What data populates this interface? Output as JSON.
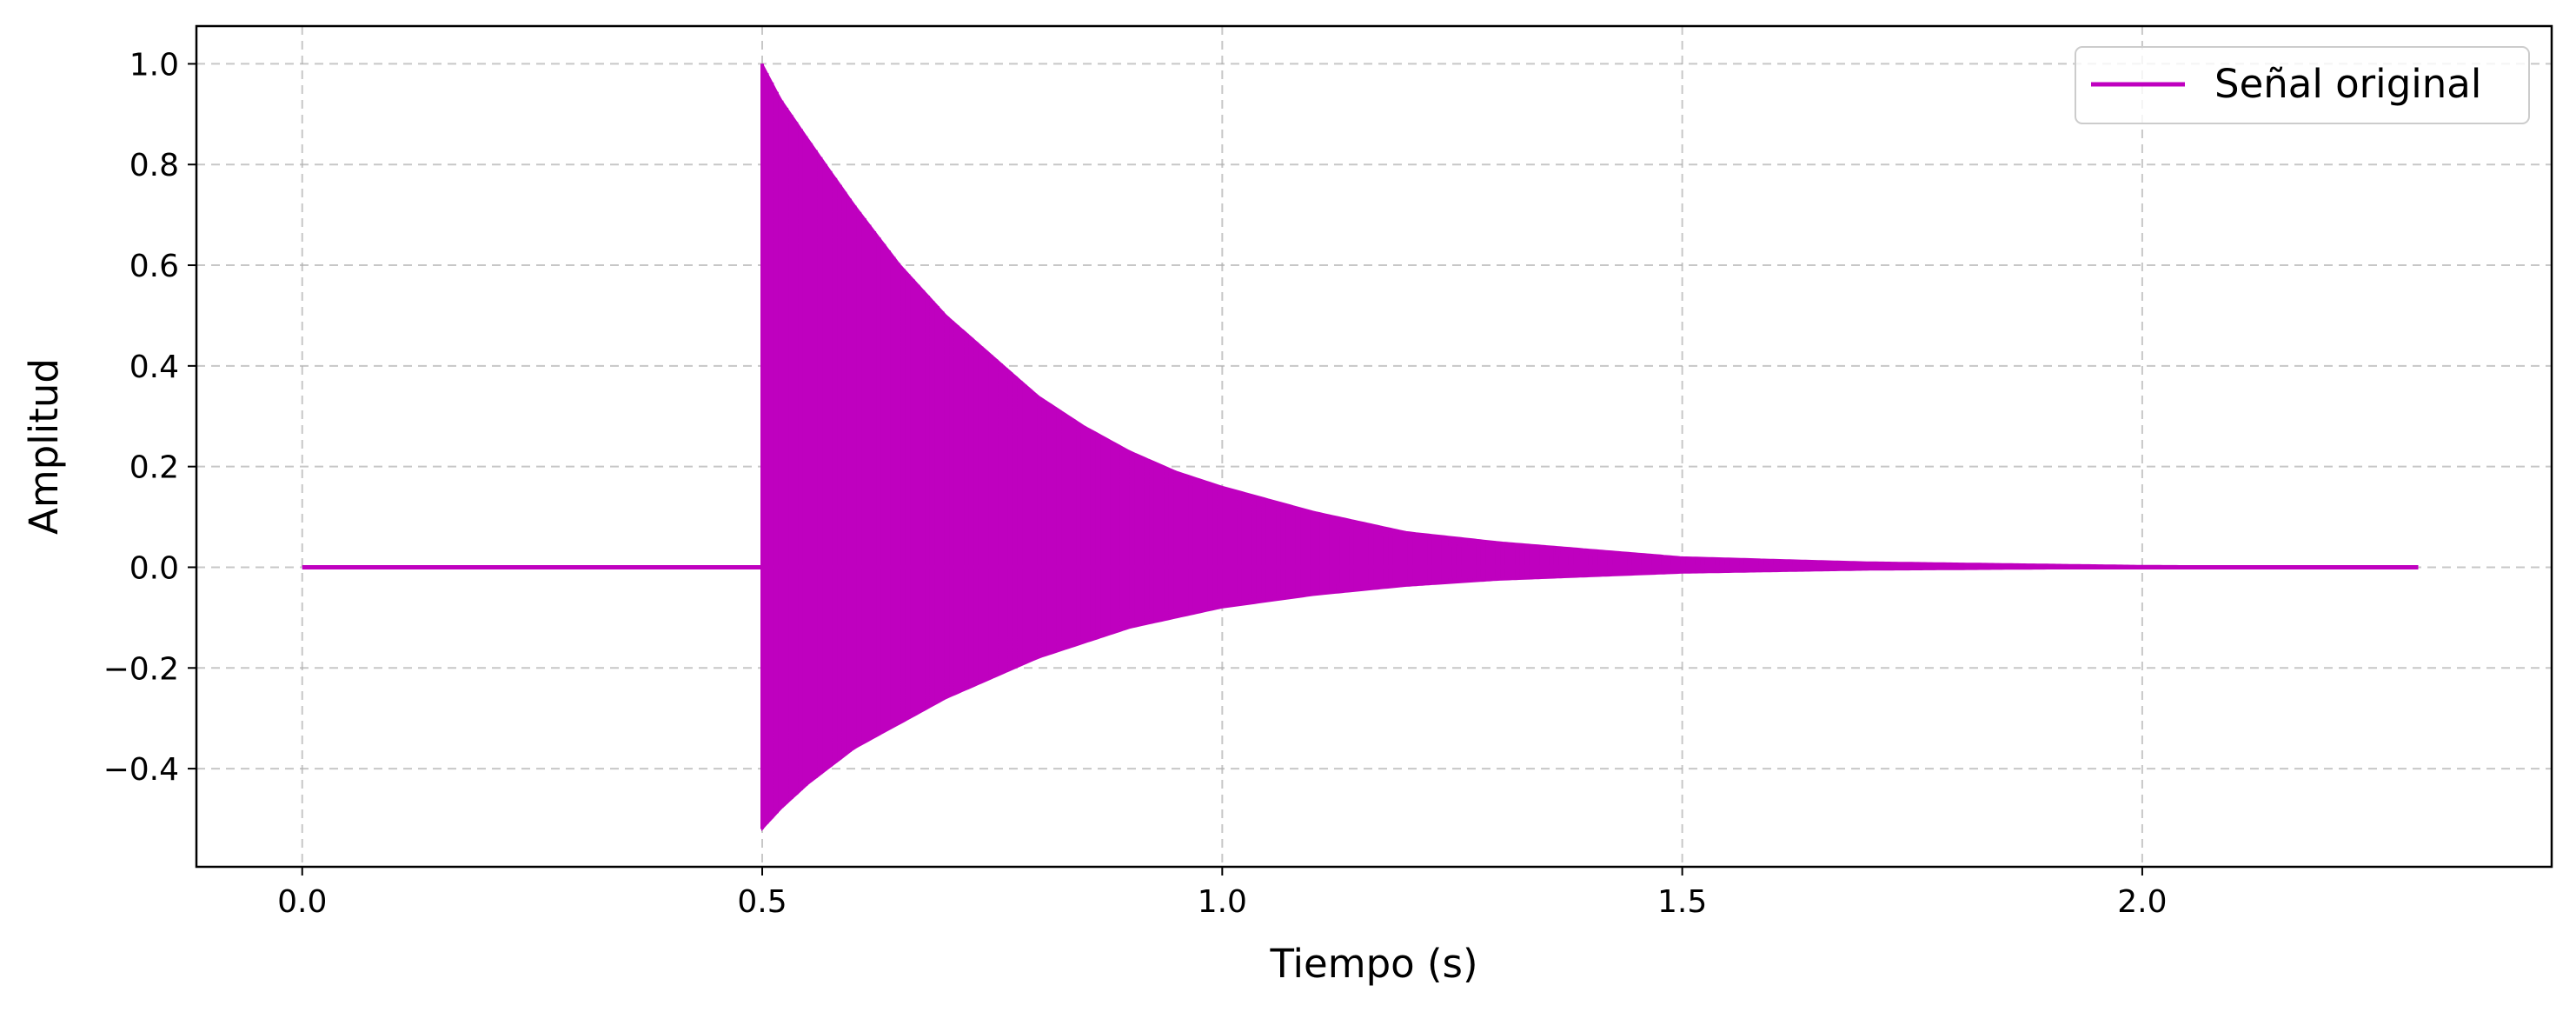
{
  "chart_data": {
    "type": "line",
    "xlabel": "Tiempo (s)",
    "ylabel": "Amplitud",
    "xlim": [
      -0.115,
      2.445
    ],
    "ylim": [
      -0.595,
      1.075
    ],
    "xticks": [
      0.0,
      0.5,
      1.0,
      1.5,
      2.0
    ],
    "xtick_labels": [
      "0.0",
      "0.5",
      "1.0",
      "1.5",
      "2.0"
    ],
    "yticks": [
      1.0,
      0.8,
      0.6,
      0.4,
      0.2,
      0.0,
      -0.2,
      -0.4
    ],
    "ytick_labels": [
      "1.0",
      "0.8",
      "0.6",
      "0.4",
      "0.2",
      "0.0",
      "−0.2",
      "−0.4"
    ],
    "grid": true,
    "grid_style": "dashed",
    "legend_position": "top-right",
    "series": [
      {
        "name": "Señal original",
        "color": "#bf00bf",
        "signal": {
          "x_start": 0.0,
          "x_end": 2.3,
          "onset": 0.5,
          "envelope_time": [
            0.5,
            0.52,
            0.55,
            0.6,
            0.65,
            0.7,
            0.75,
            0.8,
            0.85,
            0.9,
            0.95,
            1.0,
            1.1,
            1.2,
            1.3,
            1.5,
            1.7,
            2.0,
            2.3
          ],
          "positive_peak": [
            1.0,
            0.93,
            0.85,
            0.72,
            0.6,
            0.5,
            0.42,
            0.34,
            0.28,
            0.23,
            0.19,
            0.16,
            0.11,
            0.07,
            0.05,
            0.02,
            0.01,
            0.003,
            0.0
          ],
          "negative_peak": [
            -0.52,
            -0.48,
            -0.43,
            -0.36,
            -0.31,
            -0.26,
            -0.22,
            -0.18,
            -0.15,
            -0.12,
            -0.1,
            -0.08,
            -0.055,
            -0.037,
            -0.025,
            -0.011,
            -0.005,
            -0.0015,
            0.0
          ]
        }
      }
    ]
  }
}
